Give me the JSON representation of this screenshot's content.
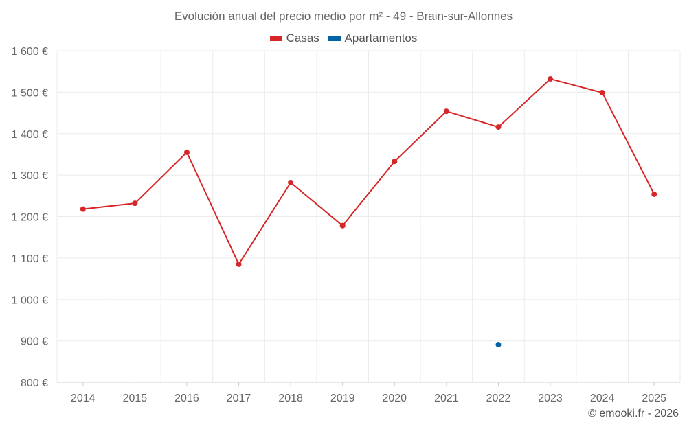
{
  "chart_data": {
    "type": "line",
    "title": "Evolución anual del precio medio por m² - 49 - Brain-sur-Allonnes",
    "categories": [
      "2014",
      "2015",
      "2016",
      "2017",
      "2018",
      "2019",
      "2020",
      "2021",
      "2022",
      "2023",
      "2024",
      "2025"
    ],
    "series": [
      {
        "name": "Casas",
        "color": "#d62728",
        "values": [
          1218,
          1232,
          1355,
          1085,
          1282,
          1178,
          1333,
          1454,
          1416,
          1532,
          1499,
          1254
        ]
      },
      {
        "name": "Apartamentos",
        "color": "#0063a3",
        "values": [
          null,
          null,
          null,
          null,
          null,
          null,
          null,
          null,
          891,
          null,
          null,
          null
        ]
      }
    ],
    "ylim": [
      800,
      1600
    ],
    "yticks": [
      800,
      900,
      1000,
      1100,
      1200,
      1300,
      1400,
      1500,
      1600
    ],
    "ytick_labels": [
      "800 €",
      "900 €",
      "1 000 €",
      "1 100 €",
      "1 200 €",
      "1 300 €",
      "1 400 €",
      "1 500 €",
      "1 600 €"
    ],
    "xlabel": "",
    "ylabel": "",
    "grid": true,
    "legend_position": "top-center"
  },
  "credit": "© emooki.fr - 2026"
}
